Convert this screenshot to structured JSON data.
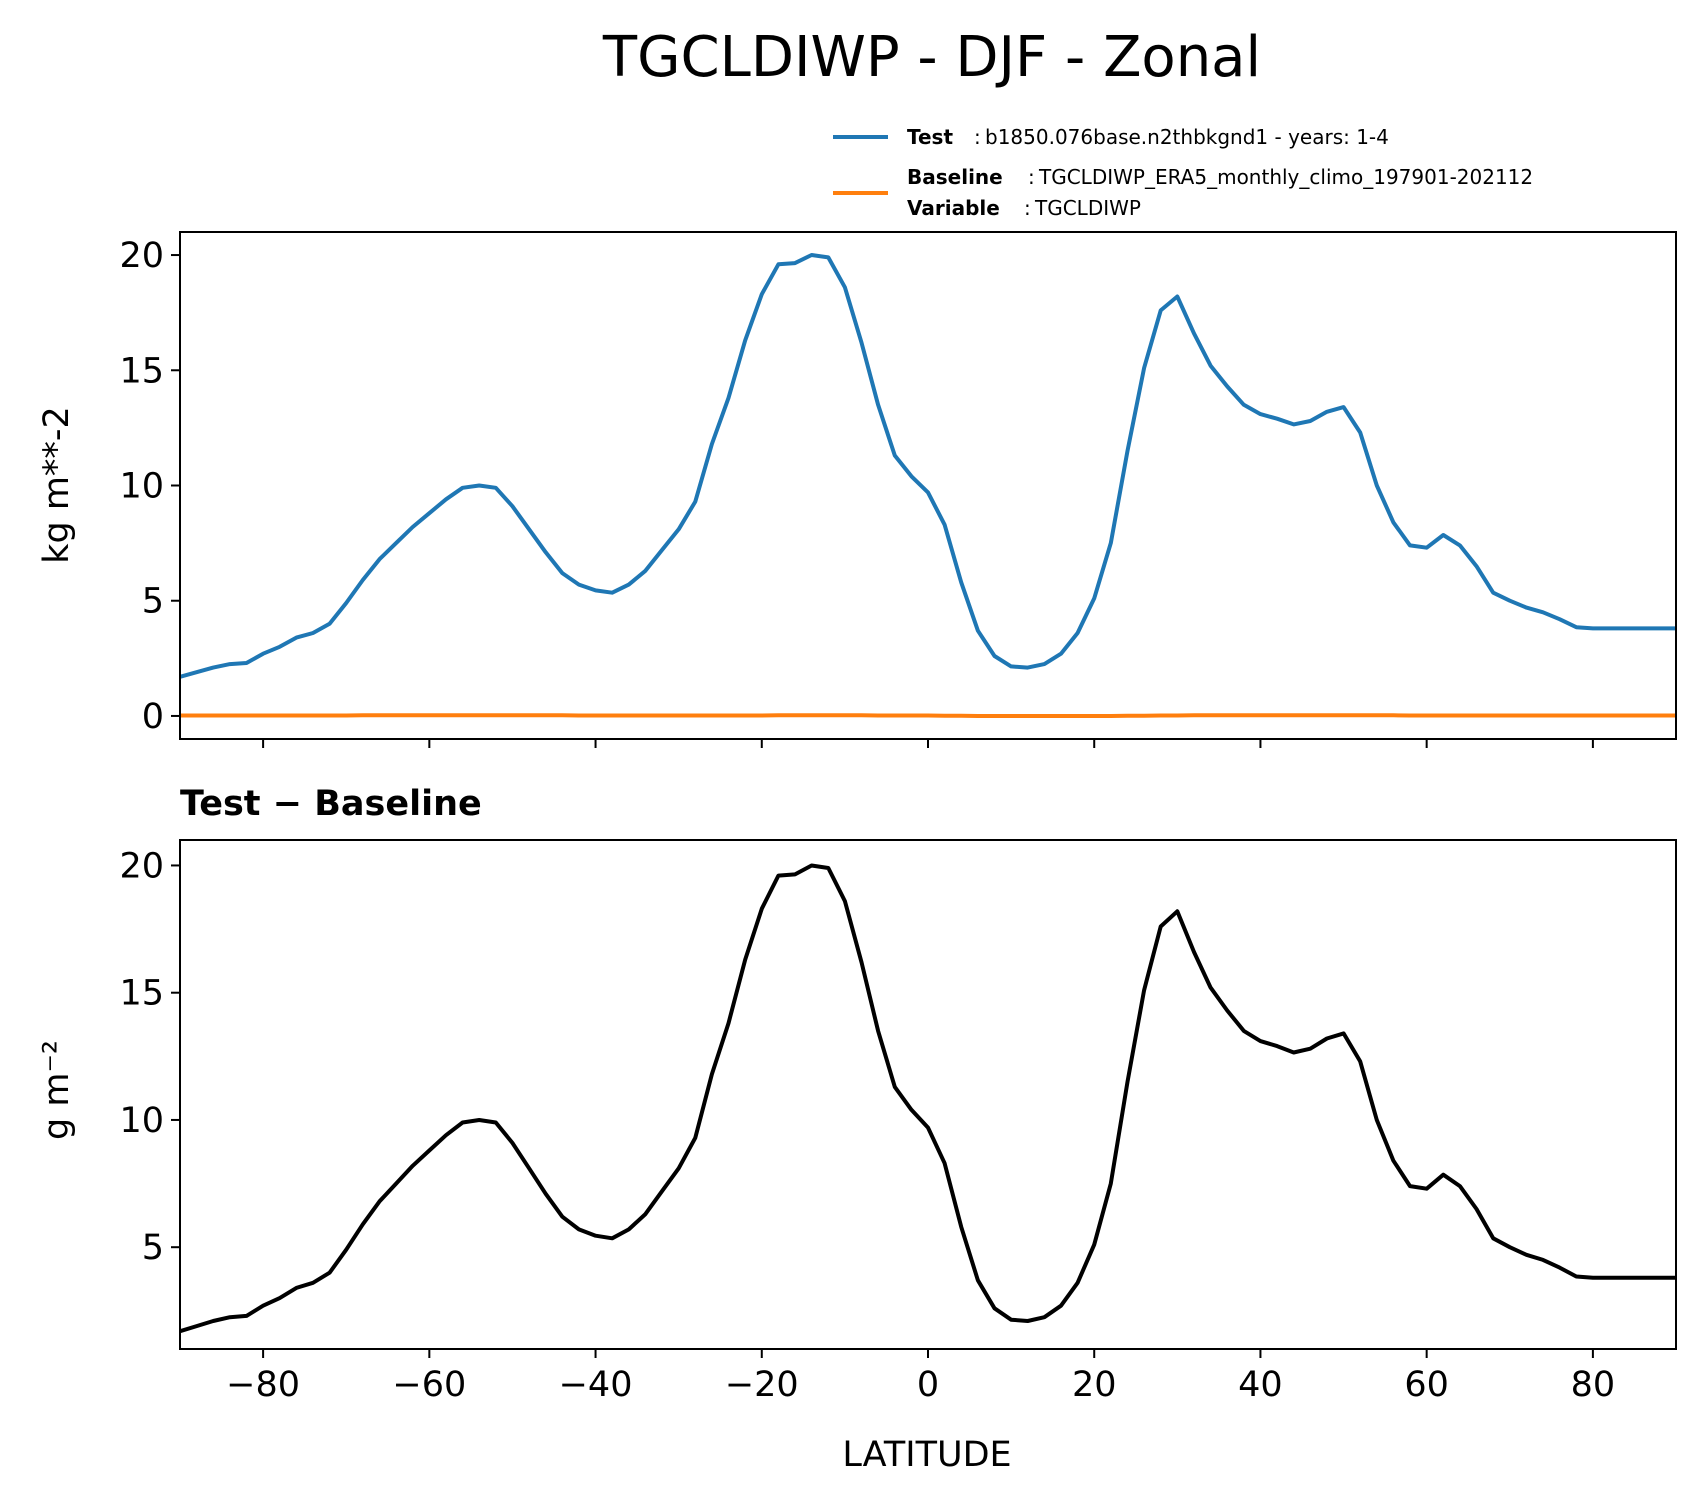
{
  "title": "TGCLDIWP - DJF - Zonal",
  "legend": {
    "test_key": "Test",
    "test_value": "b1850.076base.n2thbkgnd1 - years: 1-4",
    "baseline_key": "Baseline",
    "baseline_value": "TGCLDIWP_ERA5_monthly_climo_197901-202112",
    "variable_key": "Variable",
    "variable_value": "TGCLDIWP",
    "sep": ":"
  },
  "colors": {
    "test": "#1f77b4",
    "baseline": "#ff7f0e",
    "diff": "#000000"
  },
  "chart_data": [
    {
      "type": "line",
      "ylabel": "kg m**-2",
      "xlim": [
        -90,
        90
      ],
      "ylim": [
        -1,
        21
      ],
      "xticks": [
        -80,
        -60,
        -40,
        -20,
        0,
        20,
        40,
        60,
        80
      ],
      "yticks": [
        0,
        5,
        10,
        15,
        20
      ],
      "ytick_labels": [
        "0",
        "5",
        "10",
        "15",
        "20"
      ],
      "grid": false,
      "legend": "above-right",
      "x": [
        -90,
        -88,
        -86,
        -84,
        -82,
        -80,
        -78,
        -76,
        -74,
        -72,
        -70,
        -68,
        -66,
        -64,
        -62,
        -60,
        -58,
        -56,
        -54,
        -52,
        -50,
        -48,
        -46,
        -44,
        -42,
        -40,
        -38,
        -36,
        -34,
        -32,
        -30,
        -28,
        -26,
        -24,
        -22,
        -20,
        -18,
        -16,
        -14,
        -12,
        -10,
        -8,
        -6,
        -4,
        -2,
        0,
        2,
        4,
        6,
        8,
        10,
        12,
        14,
        16,
        18,
        20,
        22,
        24,
        26,
        28,
        30,
        32,
        34,
        36,
        38,
        40,
        42,
        44,
        46,
        48,
        50,
        52,
        54,
        56,
        58,
        60,
        62,
        64,
        66,
        68,
        70,
        72,
        74,
        76,
        78,
        80,
        82,
        84,
        86,
        88,
        90
      ],
      "series": [
        {
          "name": "Test",
          "color": "#1f77b4",
          "values": [
            1.7,
            1.9,
            2.1,
            2.25,
            2.3,
            2.7,
            3.0,
            3.4,
            3.6,
            4.0,
            4.9,
            5.9,
            6.8,
            7.5,
            8.2,
            8.8,
            9.4,
            9.9,
            10.0,
            9.9,
            9.1,
            8.1,
            7.1,
            6.2,
            5.7,
            5.45,
            5.35,
            5.7,
            6.3,
            7.2,
            8.1,
            9.3,
            11.8,
            13.8,
            16.3,
            18.3,
            19.6,
            19.65,
            20.0,
            19.9,
            18.6,
            16.2,
            13.5,
            11.3,
            10.4,
            9.7,
            8.3,
            5.8,
            3.7,
            2.6,
            2.15,
            2.1,
            2.25,
            2.7,
            3.6,
            5.1,
            7.5,
            11.5,
            15.1,
            17.6,
            18.2,
            16.6,
            15.2,
            14.3,
            13.5,
            13.1,
            12.9,
            12.65,
            12.8,
            13.2,
            13.4,
            12.3,
            10.0,
            8.4,
            7.4,
            7.3,
            7.85,
            7.4,
            6.5,
            5.35,
            5.0,
            4.7,
            4.5,
            4.2,
            3.85,
            3.8,
            3.8,
            3.8,
            3.8,
            3.8,
            3.8
          ]
        },
        {
          "name": "Baseline",
          "color": "#ff7f0e",
          "values": [
            0.02,
            0.02,
            0.02,
            0.02,
            0.02,
            0.02,
            0.02,
            0.02,
            0.02,
            0.02,
            0.02,
            0.03,
            0.03,
            0.03,
            0.03,
            0.03,
            0.03,
            0.03,
            0.03,
            0.03,
            0.03,
            0.03,
            0.03,
            0.03,
            0.02,
            0.02,
            0.02,
            0.02,
            0.02,
            0.02,
            0.02,
            0.02,
            0.02,
            0.02,
            0.02,
            0.02,
            0.03,
            0.03,
            0.03,
            0.03,
            0.03,
            0.03,
            0.02,
            0.02,
            0.02,
            0.02,
            0.01,
            0.01,
            0.0,
            0.0,
            0.0,
            0.0,
            0.0,
            0.0,
            0.0,
            0.0,
            0.0,
            0.01,
            0.01,
            0.02,
            0.02,
            0.03,
            0.03,
            0.03,
            0.03,
            0.03,
            0.03,
            0.03,
            0.03,
            0.03,
            0.03,
            0.03,
            0.03,
            0.03,
            0.02,
            0.02,
            0.02,
            0.02,
            0.02,
            0.02,
            0.02,
            0.02,
            0.02,
            0.02,
            0.02,
            0.02,
            0.02,
            0.02,
            0.02,
            0.02,
            0.02
          ]
        }
      ]
    },
    {
      "type": "line",
      "title": "Test − Baseline",
      "ylabel": "g m⁻²",
      "xlabel": "LATITUDE",
      "xlim": [
        -90,
        90
      ],
      "ylim": [
        1,
        21
      ],
      "xticks": [
        -80,
        -60,
        -40,
        -20,
        0,
        20,
        40,
        60,
        80
      ],
      "xtick_labels": [
        "−80",
        "−60",
        "−40",
        "−20",
        "0",
        "20",
        "40",
        "60",
        "80"
      ],
      "yticks": [
        5,
        10,
        15,
        20
      ],
      "ytick_labels": [
        "5",
        "10",
        "15",
        "20"
      ],
      "grid": false,
      "x": [
        -90,
        -88,
        -86,
        -84,
        -82,
        -80,
        -78,
        -76,
        -74,
        -72,
        -70,
        -68,
        -66,
        -64,
        -62,
        -60,
        -58,
        -56,
        -54,
        -52,
        -50,
        -48,
        -46,
        -44,
        -42,
        -40,
        -38,
        -36,
        -34,
        -32,
        -30,
        -28,
        -26,
        -24,
        -22,
        -20,
        -18,
        -16,
        -14,
        -12,
        -10,
        -8,
        -6,
        -4,
        -2,
        0,
        2,
        4,
        6,
        8,
        10,
        12,
        14,
        16,
        18,
        20,
        22,
        24,
        26,
        28,
        30,
        32,
        34,
        36,
        38,
        40,
        42,
        44,
        46,
        48,
        50,
        52,
        54,
        56,
        58,
        60,
        62,
        64,
        66,
        68,
        70,
        72,
        74,
        76,
        78,
        80,
        82,
        84,
        86,
        88,
        90
      ],
      "series": [
        {
          "color": "#000000",
          "values": [
            1.7,
            1.9,
            2.1,
            2.25,
            2.3,
            2.7,
            3.0,
            3.4,
            3.6,
            4.0,
            4.9,
            5.9,
            6.8,
            7.5,
            8.2,
            8.8,
            9.4,
            9.9,
            10.0,
            9.9,
            9.1,
            8.1,
            7.1,
            6.2,
            5.7,
            5.45,
            5.35,
            5.7,
            6.3,
            7.2,
            8.1,
            9.3,
            11.8,
            13.8,
            16.3,
            18.3,
            19.6,
            19.65,
            20.0,
            19.9,
            18.6,
            16.2,
            13.5,
            11.3,
            10.4,
            9.7,
            8.3,
            5.8,
            3.7,
            2.6,
            2.15,
            2.1,
            2.25,
            2.7,
            3.6,
            5.1,
            7.5,
            11.5,
            15.1,
            17.6,
            18.2,
            16.6,
            15.2,
            14.3,
            13.5,
            13.1,
            12.9,
            12.65,
            12.8,
            13.2,
            13.4,
            12.3,
            10.0,
            8.4,
            7.4,
            7.3,
            7.85,
            7.4,
            6.5,
            5.35,
            5.0,
            4.7,
            4.5,
            4.2,
            3.85,
            3.8,
            3.8,
            3.8,
            3.8,
            3.8,
            3.8
          ]
        }
      ]
    }
  ]
}
